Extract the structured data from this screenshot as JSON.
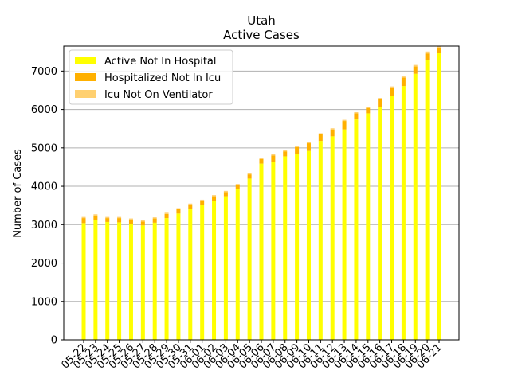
{
  "chart_data": {
    "type": "bar",
    "stacked": true,
    "title": "Utah",
    "subtitle": "Active Cases",
    "xlabel": "",
    "ylabel": "Number of Cases",
    "ylim": [
      0,
      7650
    ],
    "yticks": [
      0,
      1000,
      2000,
      3000,
      4000,
      5000,
      6000,
      7000
    ],
    "grid": "horizontal",
    "legend_position": "top-left",
    "categories": [
      "05-22",
      "05-23",
      "05-24",
      "05-25",
      "05-26",
      "05-27",
      "05-28",
      "05-29",
      "05-30",
      "05-31",
      "06-01",
      "06-02",
      "06-03",
      "06-04",
      "06-05",
      "06-06",
      "06-07",
      "06-08",
      "06-09",
      "06-10",
      "06-11",
      "06-12",
      "06-13",
      "06-14",
      "06-15",
      "06-16",
      "06-17",
      "06-18",
      "06-19",
      "06-20",
      "06-21"
    ],
    "series": [
      {
        "name": "Active Not In Hospital",
        "color": "#ffff00",
        "values": [
          3040,
          3110,
          3070,
          3060,
          3020,
          2980,
          3050,
          3170,
          3290,
          3420,
          3510,
          3620,
          3740,
          3920,
          4200,
          4590,
          4640,
          4780,
          4830,
          4920,
          5180,
          5300,
          5480,
          5740,
          5900,
          6060,
          6360,
          6610,
          6930,
          7280,
          7480
        ]
      },
      {
        "name": "Hospitalized Not In Icu",
        "color": "#ffb000",
        "values": [
          130,
          130,
          100,
          110,
          110,
          100,
          110,
          110,
          110,
          100,
          110,
          120,
          110,
          110,
          110,
          120,
          160,
          130,
          190,
          200,
          170,
          180,
          220,
          160,
          140,
          210,
          210,
          220,
          190,
          180,
          130
        ]
      },
      {
        "name": "Icu Not On Ventilator",
        "color": "#ffd070",
        "values": [
          30,
          30,
          30,
          30,
          30,
          30,
          30,
          30,
          30,
          30,
          30,
          30,
          30,
          30,
          30,
          30,
          30,
          30,
          30,
          30,
          30,
          30,
          30,
          30,
          30,
          30,
          30,
          30,
          40,
          50,
          40
        ]
      }
    ]
  }
}
